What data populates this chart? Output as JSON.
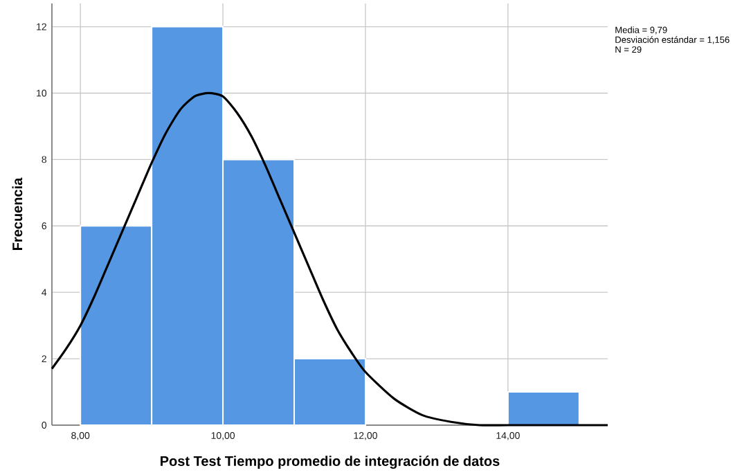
{
  "chart_data": {
    "type": "histogram",
    "xlabel": "Post Test Tiempo promedio de integración de datos",
    "ylabel": "Frecuencia",
    "bins": [
      8,
      9,
      10,
      11,
      12,
      13,
      14,
      15
    ],
    "values": [
      6,
      12,
      8,
      2,
      0,
      0,
      1
    ],
    "color": "#5597e3",
    "series": [
      {
        "type": "line",
        "color": "#000000",
        "x": [
          7.6,
          7.8,
          8.0,
          8.2,
          8.4,
          8.6,
          8.8,
          9.0,
          9.2,
          9.4,
          9.6,
          9.8,
          10.0,
          10.2,
          10.4,
          10.6,
          10.8,
          11.0,
          11.2,
          11.4,
          11.6,
          11.8,
          12.0,
          12.4,
          12.8,
          13.2,
          13.6,
          14.0,
          14.6,
          15.4
        ],
        "values": [
          1.7,
          2.3,
          3.0,
          3.9,
          4.9,
          5.9,
          6.9,
          7.9,
          8.8,
          9.5,
          9.9,
          10.0,
          9.9,
          9.4,
          8.7,
          7.8,
          6.8,
          5.8,
          4.8,
          3.8,
          2.9,
          2.2,
          1.6,
          0.8,
          0.3,
          0.1,
          0.0,
          0.0,
          0.0,
          0.0
        ]
      }
    ],
    "xlim": [
      7.6,
      15.4
    ],
    "ylim": [
      0,
      12.7
    ],
    "xticks": [
      {
        "value": 8,
        "label": "8,00"
      },
      {
        "value": 10,
        "label": "10,00"
      },
      {
        "value": 12,
        "label": "12,00"
      },
      {
        "value": 14,
        "label": "14,00"
      }
    ],
    "yticks": [
      0,
      2,
      4,
      6,
      8,
      10,
      12
    ],
    "grid": true,
    "annotations": [
      "Media = 9,79",
      "Desviación estándar = 1,156",
      "N = 29"
    ]
  }
}
